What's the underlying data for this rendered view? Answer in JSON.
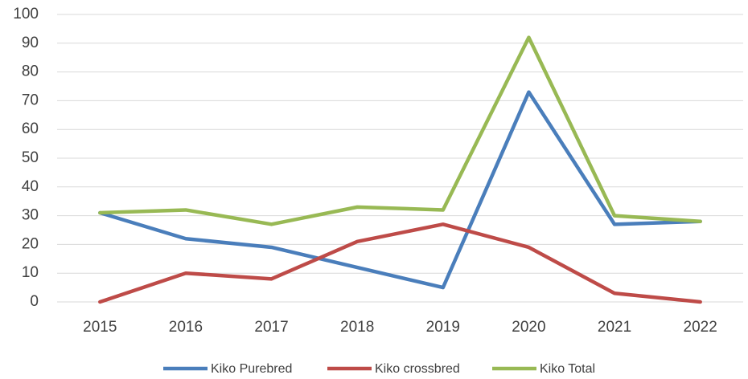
{
  "chart_data": {
    "type": "line",
    "categories": [
      "2015",
      "2016",
      "2017",
      "2018",
      "2019",
      "2020",
      "2021",
      "2022"
    ],
    "series": [
      {
        "name": "Kiko Purebred",
        "color": "#4a7ebb",
        "values": [
          31,
          22,
          19,
          12,
          5,
          73,
          27,
          28
        ]
      },
      {
        "name": "Kiko crossbred",
        "color": "#be4b48",
        "values": [
          0,
          10,
          8,
          21,
          27,
          19,
          3,
          0
        ]
      },
      {
        "name": "Kiko Total",
        "color": "#98b954",
        "values": [
          31,
          32,
          27,
          33,
          32,
          92,
          30,
          28
        ]
      }
    ],
    "ylim": [
      0,
      100
    ],
    "yticks": [
      0,
      10,
      20,
      30,
      40,
      50,
      60,
      70,
      80,
      90,
      100
    ],
    "grid": true,
    "legend": "bottom"
  }
}
